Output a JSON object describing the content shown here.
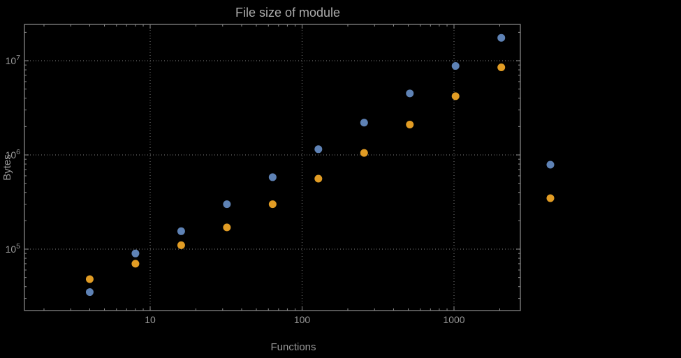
{
  "chart_data": {
    "type": "scatter",
    "title": "File size of module",
    "xlabel": "Functions",
    "ylabel": "Bytes",
    "xscale": "log",
    "yscale": "log",
    "grid": true,
    "xlim": [
      1.5,
      2700
    ],
    "ylim": [
      22000,
      24000000
    ],
    "xticks": {
      "values": [
        10,
        100,
        1000
      ],
      "labels": [
        "10",
        "100",
        "1000"
      ]
    },
    "yticks": {
      "values": [
        100000,
        1000000,
        10000000
      ],
      "labels": [
        "10^5",
        "10^6",
        "10^7"
      ]
    },
    "series": [
      {
        "name": "blue-series",
        "color": "#5e82b5",
        "points": [
          [
            4,
            35000
          ],
          [
            8,
            90000
          ],
          [
            16,
            155000
          ],
          [
            32,
            300000
          ],
          [
            64,
            580000
          ],
          [
            128,
            1150000
          ],
          [
            256,
            2200000
          ],
          [
            512,
            4500000
          ],
          [
            1024,
            8800000
          ],
          [
            2048,
            17500000
          ]
        ]
      },
      {
        "name": "orange-series",
        "color": "#e19c24",
        "points": [
          [
            4,
            48000
          ],
          [
            8,
            70000
          ],
          [
            16,
            110000
          ],
          [
            32,
            170000
          ],
          [
            64,
            300000
          ],
          [
            128,
            560000
          ],
          [
            256,
            1050000
          ],
          [
            512,
            2100000
          ],
          [
            1024,
            4200000
          ],
          [
            2048,
            8500000
          ]
        ]
      }
    ],
    "legend": {
      "position": "right-outside",
      "labels_visible": false,
      "markers": [
        {
          "series": "blue-series",
          "color": "#5e82b5"
        },
        {
          "series": "orange-series",
          "color": "#e19c24"
        }
      ]
    },
    "colors": {
      "background": "#000000",
      "frame": "#8f8f8f",
      "grid": "#6a6a6a",
      "title": "#ababab",
      "labels": "#999999",
      "tick_labels": "#999999"
    }
  }
}
